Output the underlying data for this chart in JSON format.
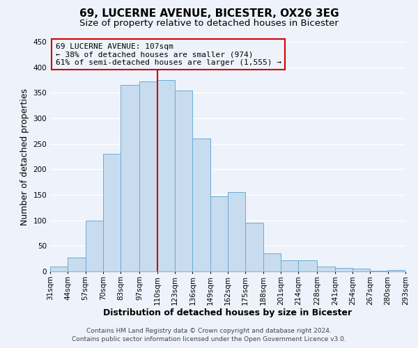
{
  "title": "69, LUCERNE AVENUE, BICESTER, OX26 3EG",
  "subtitle": "Size of property relative to detached houses in Bicester",
  "xlabel": "Distribution of detached houses by size in Bicester",
  "ylabel": "Number of detached properties",
  "bin_labels": [
    "31sqm",
    "44sqm",
    "57sqm",
    "70sqm",
    "83sqm",
    "97sqm",
    "110sqm",
    "123sqm",
    "136sqm",
    "149sqm",
    "162sqm",
    "175sqm",
    "188sqm",
    "201sqm",
    "214sqm",
    "228sqm",
    "241sqm",
    "254sqm",
    "267sqm",
    "280sqm",
    "293sqm"
  ],
  "bin_edges": [
    31,
    44,
    57,
    70,
    83,
    97,
    110,
    123,
    136,
    149,
    162,
    175,
    188,
    201,
    214,
    228,
    241,
    254,
    267,
    280,
    293
  ],
  "bar_heights": [
    10,
    27,
    100,
    230,
    365,
    372,
    375,
    355,
    260,
    147,
    155,
    95,
    35,
    22,
    22,
    10,
    7,
    5,
    2,
    3
  ],
  "bar_color": "#c8dcf0",
  "bar_edge_color": "#6aaad4",
  "vline_x": 110,
  "vline_color": "#cc0000",
  "ylim": [
    0,
    450
  ],
  "yticks": [
    0,
    50,
    100,
    150,
    200,
    250,
    300,
    350,
    400,
    450
  ],
  "annotation_title": "69 LUCERNE AVENUE: 107sqm",
  "annotation_line1": "← 38% of detached houses are smaller (974)",
  "annotation_line2": "61% of semi-detached houses are larger (1,555) →",
  "annotation_box_color": "#cc0000",
  "footer_line1": "Contains HM Land Registry data © Crown copyright and database right 2024.",
  "footer_line2": "Contains public sector information licensed under the Open Government Licence v3.0.",
  "background_color": "#eef3fb",
  "grid_color": "#ffffff",
  "title_fontsize": 11,
  "subtitle_fontsize": 9.5,
  "axis_label_fontsize": 9,
  "tick_fontsize": 7.5,
  "annotation_fontsize": 8,
  "footer_fontsize": 6.5
}
